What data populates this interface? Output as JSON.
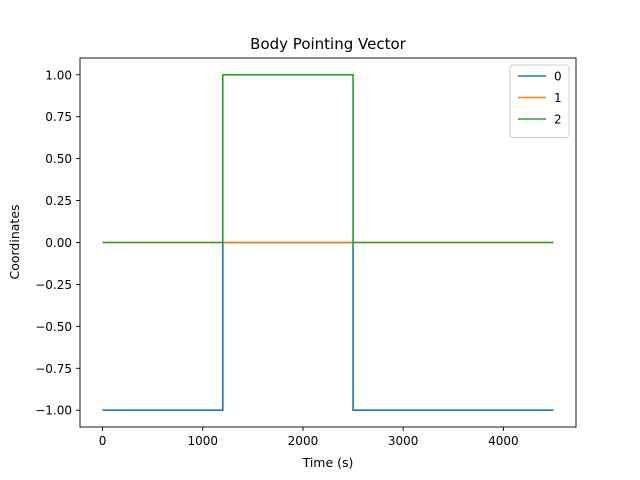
{
  "chart_data": {
    "type": "line",
    "title": "Body Pointing Vector",
    "xlabel": "Time (s)",
    "ylabel": "Coordinates",
    "xlim": [
      -225,
      4725
    ],
    "ylim": [
      -1.1,
      1.1
    ],
    "xticks": [
      0,
      1000,
      2000,
      3000,
      4000
    ],
    "xtick_labels": [
      "0",
      "1000",
      "2000",
      "3000",
      "4000"
    ],
    "yticks": [
      -1.0,
      -0.75,
      -0.5,
      -0.25,
      0.0,
      0.25,
      0.5,
      0.75,
      1.0
    ],
    "ytick_labels": [
      "−1.00",
      "−0.75",
      "−0.50",
      "−0.25",
      "0.00",
      "0.25",
      "0.50",
      "0.75",
      "1.00"
    ],
    "grid": false,
    "legend_position": "top-right",
    "series": [
      {
        "name": "0",
        "color": "#1f77b4",
        "x": [
          0,
          1200,
          1200,
          2500,
          2500,
          4500
        ],
        "y": [
          -1,
          -1,
          0,
          0,
          -1,
          -1
        ]
      },
      {
        "name": "1",
        "color": "#ff7f0e",
        "x": [
          0,
          1200,
          1200,
          2500,
          2500,
          4500
        ],
        "y": [
          0,
          0,
          0,
          0,
          0,
          0
        ]
      },
      {
        "name": "2",
        "color": "#2ca02c",
        "x": [
          0,
          1200,
          1200,
          2500,
          2500,
          4500
        ],
        "y": [
          0,
          0,
          1,
          1,
          0,
          0
        ]
      }
    ]
  }
}
